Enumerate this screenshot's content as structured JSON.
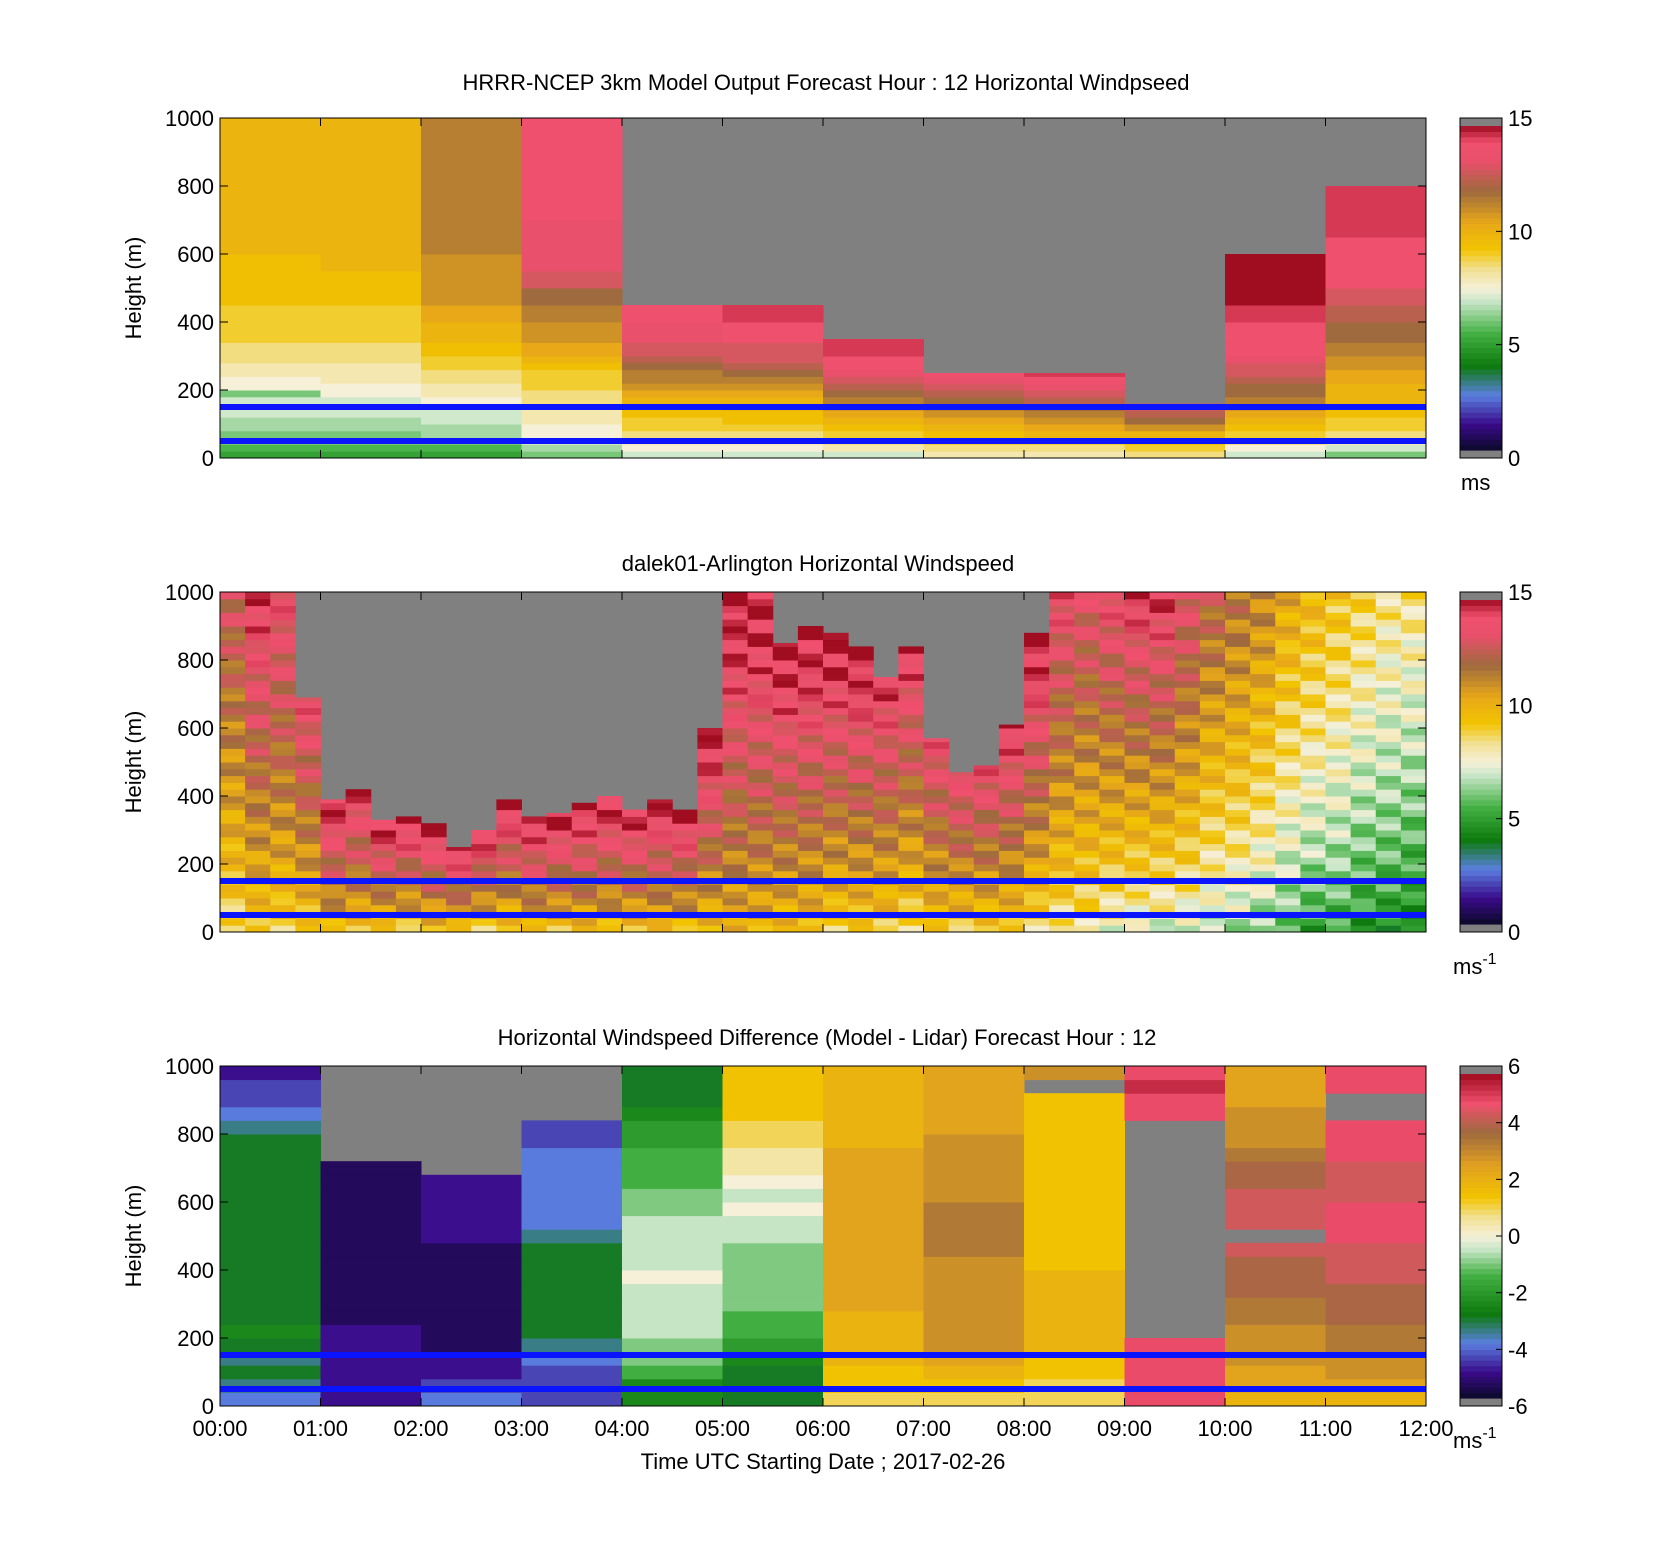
{
  "figure": {
    "xlabel": "Time UTC  Starting Date ; 2017-02-26"
  },
  "chart_data": [
    {
      "type": "heatmap",
      "title": "HRRR-NCEP 3km Model Output   Forecast Hour : 12 Horizontal Windpseed",
      "ylabel": "Height (m)",
      "ylim": [
        0,
        1000
      ],
      "yticks": [
        0,
        200,
        400,
        600,
        800,
        1000
      ],
      "xlim": [
        0,
        12
      ],
      "xticks": [],
      "colorbar": {
        "min": 0,
        "max": 15,
        "ticks": [
          0,
          5,
          10,
          15
        ],
        "unit": "ms",
        "unit_sup": "",
        "scale": "speed"
      },
      "reference_lines": [
        50,
        150
      ],
      "x": [
        0,
        1,
        2,
        3,
        4,
        5,
        6,
        7,
        8,
        9,
        10,
        11,
        12
      ],
      "y": [
        0,
        20,
        40,
        60,
        80,
        100,
        120,
        140,
        160,
        180,
        200,
        220,
        240,
        260,
        280,
        300,
        340,
        400,
        450,
        500,
        550,
        600,
        650,
        700,
        800,
        900,
        1000
      ],
      "top_height": [
        1000,
        1000,
        1000,
        1000,
        450,
        450,
        350,
        250,
        250,
        160,
        600,
        800
      ],
      "values": [
        [
          5,
          5.5,
          6,
          6,
          6.5,
          6.5,
          7,
          7,
          7,
          6,
          7.5,
          7.5,
          8,
          8,
          8.5,
          8.5,
          9,
          9,
          9.5,
          9.5,
          9.5,
          10,
          10,
          10,
          10,
          10
        ],
        [
          5,
          5.5,
          6,
          6,
          6.5,
          6.5,
          7,
          7,
          7,
          7.5,
          7.5,
          8,
          8,
          8,
          8.5,
          8.5,
          9,
          9,
          9.5,
          9.5,
          10,
          10,
          10,
          10,
          10,
          10
        ],
        [
          5,
          5.5,
          6,
          6.5,
          6.5,
          7,
          7,
          7,
          7.5,
          8,
          8,
          8.5,
          8.5,
          9,
          9,
          9.5,
          10,
          10.5,
          11,
          11,
          11,
          11.5,
          11.5,
          11.5,
          11.5,
          11.5
        ],
        [
          6,
          6.5,
          7,
          7.5,
          7.5,
          8,
          8,
          8,
          8.5,
          8.5,
          9,
          9,
          9,
          9.5,
          10,
          10.5,
          11,
          11.5,
          12,
          13,
          13.5,
          13.5,
          13.5,
          14,
          14,
          14
        ],
        [
          7,
          7.5,
          8,
          8.5,
          9,
          9,
          9.5,
          9.5,
          10,
          10.5,
          11,
          11.5,
          11.5,
          12,
          12.5,
          13,
          13.5,
          14,
          14.5,
          15,
          15,
          15,
          15,
          15,
          15,
          15
        ],
        [
          7,
          7.5,
          8,
          8.5,
          9,
          9.5,
          9.5,
          10,
          10,
          10.5,
          11,
          11.5,
          12,
          12.5,
          13,
          13,
          14,
          14.5,
          15,
          15,
          15,
          15,
          15,
          15,
          15,
          15
        ],
        [
          7,
          8,
          8.5,
          9,
          9.5,
          10,
          10.5,
          11,
          11.5,
          12,
          12.5,
          13,
          13.5,
          14,
          14,
          14.5,
          14.5,
          15,
          15,
          15,
          15,
          15,
          15,
          15,
          15,
          15
        ],
        [
          8,
          8.5,
          9,
          9.5,
          10,
          10.5,
          11,
          11.5,
          12,
          12.5,
          13,
          13.5,
          14,
          14.5,
          14.5,
          15,
          15,
          15,
          15,
          15,
          15,
          15,
          15,
          15,
          15,
          15
        ],
        [
          8,
          8.5,
          9,
          10,
          10.5,
          11,
          11.5,
          12,
          12.5,
          13,
          13.5,
          14,
          14.5,
          15,
          15,
          15,
          15,
          15,
          15,
          15,
          15,
          15,
          15,
          15,
          15,
          15
        ],
        [
          8.5,
          9,
          9.5,
          10,
          11,
          12,
          12.5,
          13,
          13.5,
          14,
          14,
          14.5,
          14.5,
          15,
          15,
          15,
          15,
          15,
          15,
          15,
          15,
          15,
          15,
          15,
          15,
          15
        ],
        [
          7,
          7.5,
          8.5,
          9,
          9.5,
          10,
          10.5,
          11,
          11.5,
          12,
          12,
          12.5,
          13,
          13,
          13.5,
          14,
          14,
          14.5,
          15,
          15,
          15,
          15,
          15,
          15,
          15,
          15
        ],
        [
          6,
          7,
          8,
          8.5,
          9,
          9,
          9.5,
          9.5,
          10,
          10,
          10,
          10.5,
          10.5,
          11,
          11,
          11.5,
          12,
          12.5,
          13,
          14,
          14,
          14,
          14.5,
          14.5,
          15,
          15
        ]
      ]
    },
    {
      "type": "heatmap",
      "title": "dalek01-Arlington  Horizontal Windspeed",
      "ylabel": "Height (m)",
      "ylim": [
        0,
        1000
      ],
      "yticks": [
        0,
        200,
        400,
        600,
        800,
        1000
      ],
      "xlim": [
        0,
        12
      ],
      "xticks": [],
      "colorbar": {
        "min": 0,
        "max": 15,
        "ticks": [
          0,
          5,
          10,
          15
        ],
        "unit": "ms",
        "unit_sup": "-1",
        "scale": "speed"
      },
      "reference_lines": [
        50,
        150
      ],
      "x_step_hours": 0.25,
      "y_step_m": 20,
      "top_height": [
        1000,
        1000,
        1000,
        690,
        390,
        420,
        330,
        340,
        320,
        250,
        300,
        390,
        340,
        350,
        380,
        400,
        360,
        390,
        360,
        600,
        1000,
        1000,
        850,
        900,
        880,
        840,
        750,
        840,
        570,
        470,
        490,
        610,
        880,
        1000,
        1000,
        1000,
        1000,
        1000,
        1000,
        1000,
        1000,
        1000,
        1000,
        1000,
        1000,
        1000,
        1000,
        1000
      ],
      "low_speed": [
        8.5,
        9,
        9,
        9,
        9.5,
        9.5,
        9,
        9,
        9.5,
        9,
        9,
        9,
        9.5,
        9.5,
        9.5,
        9.5,
        9.5,
        9.5,
        9.5,
        9.5,
        10,
        10,
        9.5,
        9.5,
        9,
        9,
        9,
        8.5,
        9,
        9,
        9,
        9,
        8.5,
        8,
        8,
        7.5,
        7,
        7,
        7,
        6.5,
        6.5,
        6,
        5.5,
        5,
        5,
        4.5,
        4.5,
        4
      ],
      "top_speed": [
        13,
        14.5,
        14,
        14,
        15,
        14.5,
        15,
        15,
        15,
        15,
        15,
        15,
        15,
        15,
        15,
        15,
        15,
        15,
        15,
        15,
        15,
        15,
        15,
        15,
        15,
        15,
        14.5,
        14.5,
        14,
        14,
        14,
        14.5,
        15,
        14,
        13.5,
        14,
        14.5,
        14.5,
        13.5,
        12.5,
        12,
        11.5,
        10.5,
        10,
        9.5,
        9,
        8.5,
        8.5
      ],
      "note": "values[c][r] = windspeed at time column c and 20 m height bin r, interpolated between low_speed and top_speed"
    },
    {
      "type": "heatmap",
      "title": "Horizontal Windspeed Difference (Model - Lidar) Forecast Hour : 12",
      "ylabel": "Height (m)",
      "ylim": [
        0,
        1000
      ],
      "yticks": [
        0,
        200,
        400,
        600,
        800,
        1000
      ],
      "xlim": [
        0,
        12
      ],
      "xticks": [
        "00:00",
        "01:00",
        "02:00",
        "03:00",
        "04:00",
        "05:00",
        "06:00",
        "07:00",
        "08:00",
        "09:00",
        "10:00",
        "11:00",
        "12:00"
      ],
      "colorbar": {
        "min": -6,
        "max": 6,
        "ticks": [
          -6,
          -4,
          -2,
          0,
          2,
          4,
          6
        ],
        "unit": "ms",
        "unit_sup": "-1",
        "scale": "diff"
      },
      "reference_lines": [
        50,
        150
      ],
      "x": [
        0,
        1,
        2,
        3,
        4,
        5,
        6,
        7,
        8,
        9,
        10,
        11,
        12
      ],
      "y": [
        0,
        40,
        80,
        120,
        160,
        200,
        240,
        280,
        320,
        360,
        400,
        440,
        480,
        520,
        560,
        600,
        640,
        680,
        720,
        760,
        800,
        840,
        880,
        920,
        960,
        1000
      ],
      "values": [
        [
          -4,
          -3.5,
          -3,
          -3.5,
          -3,
          -2.5,
          -3,
          -3,
          -3,
          -3,
          -3,
          -3,
          -3,
          -3,
          -3,
          -3,
          -3,
          -3,
          -3,
          -3,
          -3.5,
          -4,
          -4.5,
          -4.5,
          -5
        ],
        [
          -5,
          -5,
          -5,
          -5,
          -5,
          -5,
          -5.5,
          -5.5,
          -5.5,
          -5.5,
          -5.5,
          -5.5,
          -5.5,
          -5.5,
          -5.5,
          -5.5,
          -5.5,
          -5.5,
          null,
          null,
          null,
          null,
          null,
          null,
          null
        ],
        [
          -4,
          -4.5,
          -5,
          -5,
          -5.5,
          -5.5,
          -5.5,
          -5.5,
          -5.5,
          -5.5,
          -5.5,
          -5.5,
          -5,
          -5,
          -5,
          -5,
          -5,
          null,
          null,
          null,
          null,
          null,
          null,
          null,
          null
        ],
        [
          -4.5,
          -4.5,
          -4.5,
          -4,
          -3.5,
          -3,
          -3,
          -3,
          -3,
          -3,
          -3,
          -3,
          -3.5,
          -4,
          -4,
          -4,
          -4,
          -4,
          -4,
          -4.5,
          -4.5,
          null,
          null,
          null,
          null
        ],
        [
          -2.5,
          -2.5,
          -1.5,
          -1,
          -1,
          -0.5,
          -0.5,
          -0.5,
          -0.5,
          0,
          -0.5,
          -0.5,
          -0.5,
          -0.5,
          -1,
          -1,
          -1.5,
          -1.5,
          -1.5,
          -2,
          -2,
          -2.5,
          -3,
          -3,
          -3
        ],
        [
          -3,
          -3,
          -3,
          -2.5,
          -2,
          -1.5,
          -1.5,
          -1,
          -1,
          -1,
          -1,
          -1,
          -0.5,
          -0.5,
          0,
          -0.5,
          0,
          0.5,
          0.5,
          1,
          1,
          1.5,
          1.5,
          1.5,
          1.5
        ],
        [
          1,
          1.5,
          1.5,
          2,
          2,
          2,
          2,
          2.5,
          2.5,
          2.5,
          2.5,
          2.5,
          2.5,
          2.5,
          2.5,
          2.5,
          2.5,
          2.5,
          2.5,
          2,
          2,
          2,
          2,
          2,
          2
        ],
        [
          1,
          1.5,
          2,
          2.5,
          3,
          3,
          3,
          3,
          3,
          3,
          3,
          3.5,
          3.5,
          3.5,
          3.5,
          3,
          3,
          3,
          3,
          3,
          2.5,
          2.5,
          2.5,
          2.5,
          2.5
        ],
        [
          1,
          1,
          1.5,
          1.5,
          2,
          2,
          2,
          2,
          2,
          2,
          1.5,
          1.5,
          1.5,
          1.5,
          1.5,
          1.5,
          1.5,
          1.5,
          1.5,
          1.5,
          1.5,
          1.5,
          1.5,
          null,
          3
        ],
        [
          5,
          5,
          5,
          5,
          5,
          null,
          null,
          null,
          null,
          null,
          null,
          null,
          null,
          null,
          null,
          null,
          null,
          null,
          null,
          null,
          null,
          5,
          5,
          5.5,
          5
        ],
        [
          2,
          2.5,
          2.5,
          3,
          3,
          3,
          3.5,
          3.5,
          4,
          4,
          4,
          4.5,
          null,
          4.5,
          4.5,
          4.5,
          4,
          4,
          3.5,
          3,
          3,
          3,
          2.5,
          2.5,
          2.5
        ],
        [
          2,
          2.5,
          3,
          3,
          3.5,
          3.5,
          4,
          4,
          4,
          4.5,
          4.5,
          4.5,
          5,
          5,
          5,
          4.5,
          4.5,
          4.5,
          5,
          5,
          5,
          null,
          null,
          5,
          5
        ]
      ]
    }
  ]
}
